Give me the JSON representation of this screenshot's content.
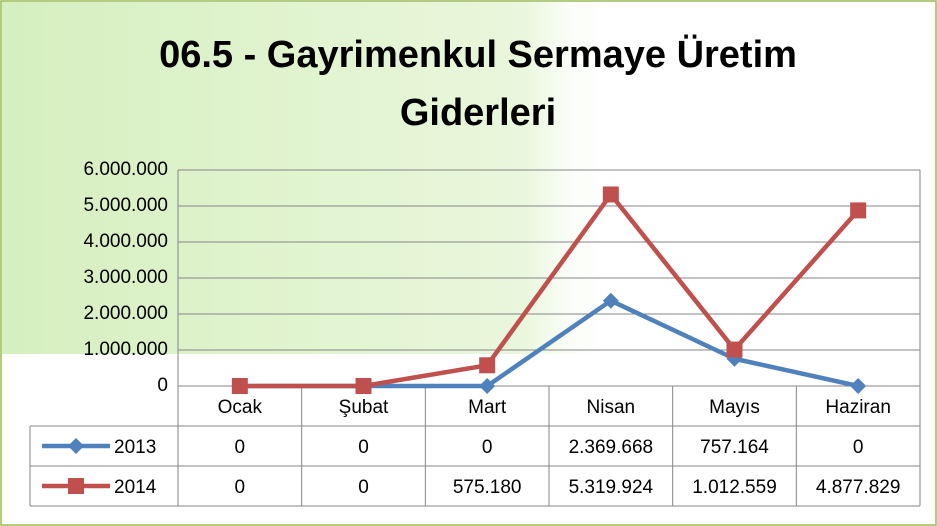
{
  "chart_data": {
    "type": "line",
    "title": "06.5 - Gayrimenkul Sermaye Üretim Giderleri",
    "categories": [
      "Ocak",
      "Şubat",
      "Mart",
      "Nisan",
      "Mayıs",
      "Haziran"
    ],
    "series": [
      {
        "name": "2013",
        "color": "#4f81bd",
        "marker": "diamond",
        "values": [
          0,
          0,
          0,
          2369668,
          757164,
          0
        ],
        "value_labels": [
          "0",
          "0",
          "0",
          "2.369.668",
          "757.164",
          "0"
        ]
      },
      {
        "name": "2014",
        "color": "#c0504d",
        "marker": "square",
        "values": [
          0,
          0,
          575180,
          5319924,
          1012559,
          4877829
        ],
        "value_labels": [
          "0",
          "0",
          "575.180",
          "5.319.924",
          "1.012.559",
          "4.877.829"
        ]
      }
    ],
    "ylim": [
      0,
      6000000
    ],
    "yticks": [
      0,
      {
        "value": 1000000,
        "label": "1.000.000"
      },
      {
        "value": 2000000,
        "label": "2.000.000"
      },
      {
        "value": 3000000,
        "label": "3.000.000"
      },
      {
        "value": 4000000,
        "label": "4.000.000"
      },
      {
        "value": 5000000,
        "label": "5.000.000"
      },
      {
        "value": 6000000,
        "label": "6.000.000"
      }
    ],
    "grid": true
  }
}
